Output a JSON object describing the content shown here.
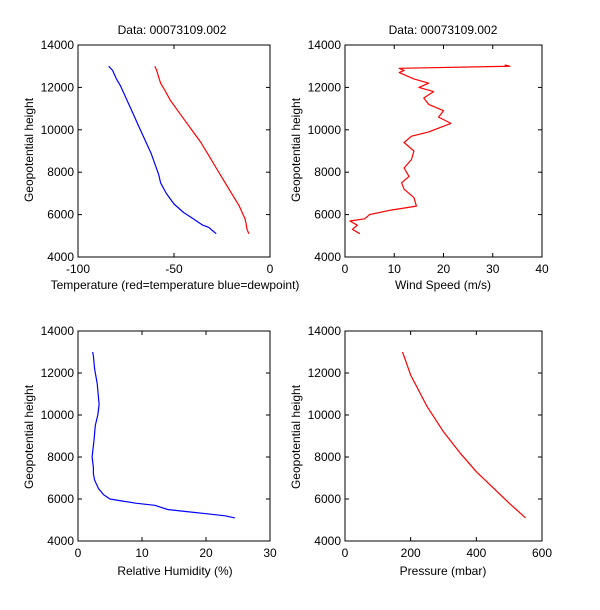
{
  "colors": {
    "red": "#ff0000",
    "blue": "#0000ff",
    "axis": "#000000"
  },
  "chart_data": [
    {
      "type": "line",
      "title": "Data: 00073109.002",
      "xlabel": "Temperature (red=temperature blue=dewpoint)",
      "ylabel": "Geopotential height",
      "xlim": [
        -100,
        0
      ],
      "ylim": [
        4000,
        14000
      ],
      "xticks": [
        -100,
        -50,
        0
      ],
      "yticks": [
        4000,
        6000,
        8000,
        10000,
        12000,
        14000
      ],
      "series": [
        {
          "color": "#ff0000",
          "x": [
            -11,
            -12,
            -12.5,
            -13,
            -14,
            -15,
            -16,
            -17,
            -20,
            -24,
            -28,
            -32,
            -36,
            -40,
            -44,
            -48,
            -52,
            -55,
            -57,
            -58,
            -59,
            -60
          ],
          "y": [
            5100,
            5300,
            5600,
            5800,
            6000,
            6200,
            6400,
            6550,
            7000,
            7600,
            8200,
            8800,
            9400,
            9900,
            10400,
            10900,
            11400,
            11900,
            12200,
            12500,
            12800,
            13000
          ]
        },
        {
          "color": "#0000ff",
          "x": [
            -28,
            -30,
            -32,
            -35,
            -40,
            -45,
            -50,
            -54,
            -57,
            -58,
            -60,
            -62,
            -64,
            -66,
            -68,
            -70,
            -72,
            -74,
            -76,
            -78,
            -80,
            -81,
            -82,
            -84
          ],
          "y": [
            5100,
            5250,
            5400,
            5500,
            5800,
            6100,
            6500,
            7000,
            7500,
            7900,
            8400,
            8900,
            9300,
            9700,
            10100,
            10500,
            10900,
            11300,
            11700,
            12100,
            12400,
            12600,
            12800,
            13000
          ]
        }
      ]
    },
    {
      "type": "line",
      "title": "Data: 00073109.002",
      "xlabel": "Wind Speed (m/s)",
      "ylabel": "Geopotential height",
      "xlim": [
        0,
        40
      ],
      "ylim": [
        4000,
        14000
      ],
      "xticks": [
        0,
        10,
        20,
        30,
        40
      ],
      "yticks": [
        4000,
        6000,
        8000,
        10000,
        12000,
        14000
      ],
      "series": [
        {
          "color": "#ff0000",
          "x": [
            3,
            1.5,
            2.5,
            1,
            4,
            5,
            9,
            14.5,
            14,
            12,
            11.5,
            13,
            12,
            13.5,
            14,
            12,
            13.5,
            17,
            21.5,
            19,
            20,
            17,
            16,
            18,
            15,
            17,
            14,
            12,
            11,
            12,
            11,
            33.5,
            32.5,
            33
          ],
          "y": [
            5100,
            5300,
            5500,
            5700,
            5800,
            6000,
            6200,
            6400,
            6800,
            7200,
            7500,
            7800,
            8200,
            8600,
            9000,
            9400,
            9700,
            9900,
            10300,
            10600,
            10900,
            11200,
            11500,
            11800,
            12000,
            12200,
            12400,
            12600,
            12700,
            12800,
            12900,
            13000,
            13050,
            13000
          ]
        }
      ]
    },
    {
      "type": "line",
      "xlabel": "Relative Humidity (%)",
      "ylabel": "Geopotential height",
      "xlim": [
        0,
        30
      ],
      "ylim": [
        4000,
        14000
      ],
      "xticks": [
        0,
        10,
        20,
        30
      ],
      "yticks": [
        4000,
        6000,
        8000,
        10000,
        12000,
        14000
      ],
      "series": [
        {
          "color": "#0000ff",
          "x": [
            24.5,
            23,
            20,
            17,
            14,
            12,
            9,
            7,
            5,
            4,
            3.2,
            2.6,
            2.4,
            2.4,
            2.2,
            2.5,
            2.7,
            3.1,
            3.3,
            3.0,
            2.6,
            2.4,
            2.3
          ],
          "y": [
            5100,
            5200,
            5300,
            5400,
            5500,
            5700,
            5800,
            5900,
            6000,
            6200,
            6500,
            6900,
            7200,
            7500,
            8000,
            8800,
            9500,
            10000,
            10500,
            11500,
            12200,
            12800,
            13000
          ]
        }
      ]
    },
    {
      "type": "line",
      "xlabel": "Pressure (mbar)",
      "ylabel": "Geopotential height",
      "xlim": [
        0,
        600
      ],
      "ylim": [
        4000,
        14000
      ],
      "xticks": [
        0,
        200,
        400,
        600
      ],
      "yticks": [
        4000,
        6000,
        8000,
        10000,
        12000,
        14000
      ],
      "series": [
        {
          "color": "#ff0000",
          "x": [
            550,
            500,
            450,
            400,
            350,
            300,
            250,
            200,
            175
          ],
          "y": [
            5100,
            5800,
            6550,
            7300,
            8200,
            9200,
            10400,
            11900,
            13000
          ]
        }
      ]
    }
  ]
}
